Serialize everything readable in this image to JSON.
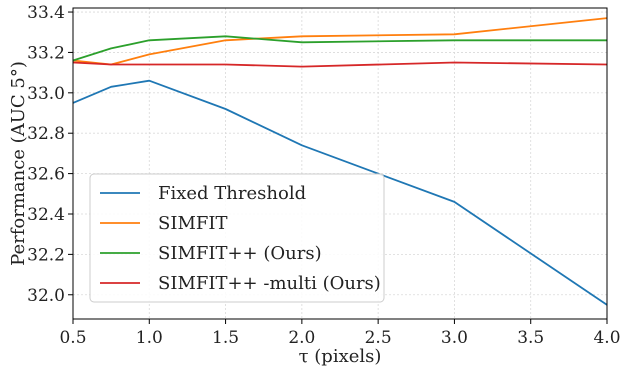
{
  "chart_data": {
    "type": "line",
    "title": "",
    "xlabel": "τ (pixels)",
    "ylabel": "Performance (AUC 5°)",
    "xlim": [
      0.5,
      4.0
    ],
    "ylim": [
      31.88,
      33.42
    ],
    "xticks": [
      0.5,
      1.0,
      1.5,
      2.0,
      2.5,
      3.0,
      3.5,
      4.0
    ],
    "xtick_labels": [
      "0.5",
      "1.0",
      "1.5",
      "2.0",
      "2.5",
      "3.0",
      "3.5",
      "4.0"
    ],
    "yticks": [
      32.0,
      32.2,
      32.4,
      32.6,
      32.8,
      33.0,
      33.2,
      33.4
    ],
    "ytick_labels": [
      "32.0",
      "32.2",
      "32.4",
      "32.6",
      "32.8",
      "33.0",
      "33.2",
      "33.4"
    ],
    "grid": true,
    "legend_position": "bottom-left",
    "x": [
      0.5,
      0.75,
      1.0,
      1.5,
      2.0,
      3.0,
      4.0
    ],
    "series": [
      {
        "name": "Fixed Threshold",
        "color": "#1f77b4",
        "values": [
          32.95,
          33.03,
          33.06,
          32.92,
          32.74,
          32.46,
          31.95
        ]
      },
      {
        "name": "SIMFIT",
        "color": "#ff7f0e",
        "values": [
          33.16,
          33.14,
          33.19,
          33.26,
          33.28,
          33.29,
          33.37
        ]
      },
      {
        "name": "SIMFIT++ (Ours)",
        "color": "#2ca02c",
        "values": [
          33.16,
          33.22,
          33.26,
          33.28,
          33.25,
          33.26,
          33.26
        ]
      },
      {
        "name": "SIMFIT++ -multi (Ours)",
        "color": "#d62728",
        "values": [
          33.15,
          33.14,
          33.14,
          33.14,
          33.13,
          33.15,
          33.14
        ]
      }
    ]
  }
}
